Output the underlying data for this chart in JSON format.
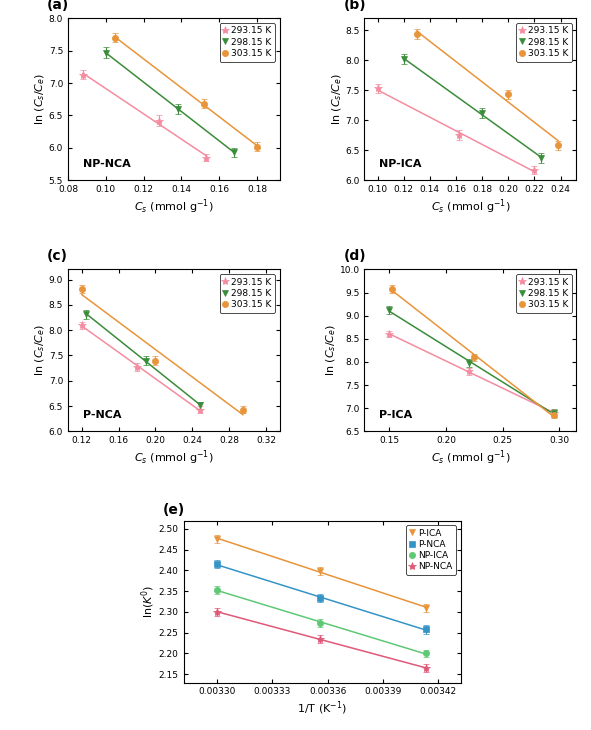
{
  "panel_a": {
    "title": "NP-NCA",
    "xlim": [
      0.082,
      0.192
    ],
    "ylim": [
      5.5,
      8.0
    ],
    "xticks": [
      0.08,
      0.1,
      0.12,
      0.14,
      0.16,
      0.18
    ],
    "yticks": [
      5.5,
      6.0,
      6.5,
      7.0,
      7.5,
      8.0
    ],
    "series": [
      {
        "T": "293.15 K",
        "color": "#f48ca0",
        "marker": "*",
        "x": [
          0.088,
          0.128,
          0.153
        ],
        "y": [
          7.13,
          6.42,
          5.85
        ],
        "yerr": [
          0.07,
          0.08,
          0.06
        ]
      },
      {
        "T": "298.15 K",
        "color": "#3a8c3a",
        "marker": "v",
        "x": [
          0.1,
          0.138,
          0.168
        ],
        "y": [
          7.47,
          6.6,
          5.93
        ],
        "yerr": [
          0.08,
          0.07,
          0.07
        ]
      },
      {
        "T": "303.15 K",
        "color": "#e8943a",
        "marker": "o",
        "x": [
          0.105,
          0.152,
          0.18
        ],
        "y": [
          7.7,
          6.68,
          6.02
        ],
        "yerr": [
          0.07,
          0.07,
          0.07
        ]
      }
    ]
  },
  "panel_b": {
    "title": "NP-ICA",
    "xlim": [
      0.09,
      0.252
    ],
    "ylim": [
      6.0,
      8.7
    ],
    "xticks": [
      0.1,
      0.12,
      0.14,
      0.16,
      0.18,
      0.2,
      0.22,
      0.24
    ],
    "yticks": [
      6.0,
      6.5,
      7.0,
      7.5,
      8.0,
      8.5
    ],
    "series": [
      {
        "T": "293.15 K",
        "color": "#f48ca0",
        "marker": "*",
        "x": [
          0.1,
          0.162,
          0.22
        ],
        "y": [
          7.53,
          6.75,
          6.17
        ],
        "yerr": [
          0.07,
          0.08,
          0.06
        ]
      },
      {
        "T": "298.15 K",
        "color": "#3a8c3a",
        "marker": "v",
        "x": [
          0.12,
          0.18,
          0.225
        ],
        "y": [
          8.02,
          7.12,
          6.37
        ],
        "yerr": [
          0.08,
          0.09,
          0.08
        ]
      },
      {
        "T": "303.15 K",
        "color": "#e8943a",
        "marker": "o",
        "x": [
          0.13,
          0.2,
          0.238
        ],
        "y": [
          8.44,
          7.43,
          6.58
        ],
        "yerr": [
          0.08,
          0.08,
          0.07
        ]
      }
    ]
  },
  "panel_c": {
    "title": "P-NCA",
    "xlim": [
      0.105,
      0.335
    ],
    "ylim": [
      6.0,
      9.2
    ],
    "xticks": [
      0.12,
      0.16,
      0.2,
      0.24,
      0.28,
      0.32
    ],
    "yticks": [
      6.0,
      6.5,
      7.0,
      7.5,
      8.0,
      8.5,
      9.0
    ],
    "series": [
      {
        "T": "293.15 K",
        "color": "#f48ca0",
        "marker": "*",
        "x": [
          0.12,
          0.18,
          0.248
        ],
        "y": [
          8.1,
          7.27,
          6.43
        ],
        "yerr": [
          0.07,
          0.08,
          0.07
        ]
      },
      {
        "T": "298.15 K",
        "color": "#3a8c3a",
        "marker": "v",
        "x": [
          0.125,
          0.19,
          0.248
        ],
        "y": [
          8.31,
          7.4,
          6.52
        ],
        "yerr": [
          0.08,
          0.08,
          0.07
        ]
      },
      {
        "T": "303.15 K",
        "color": "#e8943a",
        "marker": "o",
        "x": [
          0.12,
          0.2,
          0.295
        ],
        "y": [
          8.82,
          7.4,
          6.43
        ],
        "yerr": [
          0.08,
          0.09,
          0.07
        ]
      }
    ]
  },
  "panel_d": {
    "title": "P-ICA",
    "xlim": [
      0.128,
      0.315
    ],
    "ylim": [
      6.5,
      10.0
    ],
    "xticks": [
      0.15,
      0.2,
      0.25,
      0.3
    ],
    "yticks": [
      6.5,
      7.0,
      7.5,
      8.0,
      8.5,
      9.0,
      9.5,
      10.0
    ],
    "series": [
      {
        "T": "293.15 K",
        "color": "#f48ca0",
        "marker": "*",
        "x": [
          0.15,
          0.22,
          0.295
        ],
        "y": [
          8.6,
          7.8,
          6.9
        ],
        "yerr": [
          0.07,
          0.08,
          0.07
        ]
      },
      {
        "T": "298.15 K",
        "color": "#3a8c3a",
        "marker": "v",
        "x": [
          0.15,
          0.22,
          0.295
        ],
        "y": [
          9.12,
          7.98,
          6.9
        ],
        "yerr": [
          0.08,
          0.08,
          0.08
        ]
      },
      {
        "T": "303.15 K",
        "color": "#e8943a",
        "marker": "o",
        "x": [
          0.152,
          0.225,
          0.295
        ],
        "y": [
          9.58,
          8.1,
          6.85
        ],
        "yerr": [
          0.08,
          0.08,
          0.07
        ]
      }
    ]
  },
  "panel_e": {
    "xlim": [
      0.003282,
      0.003432
    ],
    "ylim": [
      2.13,
      2.52
    ],
    "xticks": [
      0.0033,
      0.00333,
      0.00336,
      0.00339,
      0.00342
    ],
    "yticks": [
      2.15,
      2.2,
      2.25,
      2.3,
      2.35,
      2.4,
      2.45,
      2.5
    ],
    "series": [
      {
        "label": "P-ICA",
        "color": "#e8943a",
        "marker": "v",
        "x": [
          0.0033,
          0.003356,
          0.003413
        ],
        "y": [
          2.476,
          2.399,
          2.31
        ],
        "yerr": [
          0.009,
          0.01,
          0.009
        ]
      },
      {
        "label": "P-NCA",
        "color": "#3494c8",
        "marker": "s",
        "x": [
          0.0033,
          0.003356,
          0.003413
        ],
        "y": [
          2.415,
          2.333,
          2.258
        ],
        "yerr": [
          0.009,
          0.01,
          0.01
        ]
      },
      {
        "label": "NP-ICA",
        "color": "#5ec875",
        "marker": "o",
        "x": [
          0.0033,
          0.003356,
          0.003413
        ],
        "y": [
          2.353,
          2.274,
          2.2
        ],
        "yerr": [
          0.009,
          0.01,
          0.009
        ]
      },
      {
        "label": "NP-NCA",
        "color": "#e05878",
        "marker": "*",
        "x": [
          0.0033,
          0.003356,
          0.003413
        ],
        "y": [
          2.3,
          2.235,
          2.165
        ],
        "yerr": [
          0.009,
          0.01,
          0.009
        ]
      }
    ]
  },
  "temp_labels": [
    "293.15 K",
    "298.15 K",
    "303.15 K"
  ]
}
